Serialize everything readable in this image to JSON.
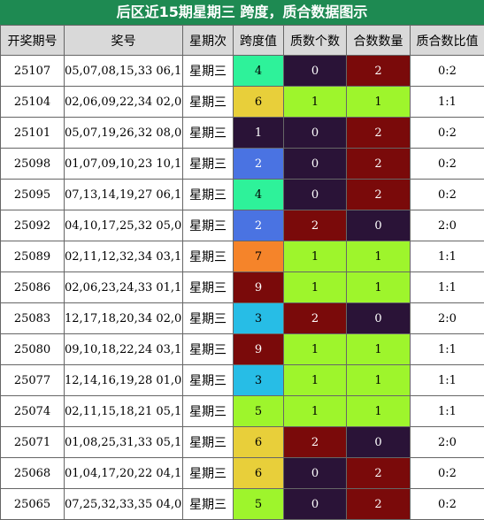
{
  "title": "后区近15期星期三 跨度，质合数据图示",
  "columns": [
    "开奖期号",
    "奖号",
    "星期次",
    "跨度值",
    "质数个数",
    "合数数量",
    "质合数比值"
  ],
  "span_colors": {
    "0": "#2a1337",
    "1": "#2a1337",
    "2": "#4a73e2",
    "3": "#27bde6",
    "4": "#2ef29a",
    "5": "#9ef52c",
    "6": "#e8cf3a",
    "7": "#f5842a",
    "8": "#7a0a0a",
    "9": "#7a0a0a"
  },
  "count_colors": {
    "0": "#2a1337",
    "1": "#9ef52c",
    "2": "#7a0a0a"
  },
  "rows": [
    {
      "issue": "25107",
      "numbers": "05,07,08,15,33 06,10",
      "weekday": "星期三",
      "span": 4,
      "primes": 0,
      "composites": 2,
      "ratio": "0:2"
    },
    {
      "issue": "25104",
      "numbers": "02,06,09,22,34 02,08",
      "weekday": "星期三",
      "span": 6,
      "primes": 1,
      "composites": 1,
      "ratio": "1:1"
    },
    {
      "issue": "25101",
      "numbers": "05,07,19,26,32 08,09",
      "weekday": "星期三",
      "span": 1,
      "primes": 0,
      "composites": 2,
      "ratio": "0:2"
    },
    {
      "issue": "25098",
      "numbers": "01,07,09,10,23 10,12",
      "weekday": "星期三",
      "span": 2,
      "primes": 0,
      "composites": 2,
      "ratio": "0:2"
    },
    {
      "issue": "25095",
      "numbers": "07,13,14,19,27 06,10",
      "weekday": "星期三",
      "span": 4,
      "primes": 0,
      "composites": 2,
      "ratio": "0:2"
    },
    {
      "issue": "25092",
      "numbers": "04,10,17,25,32 05,07",
      "weekday": "星期三",
      "span": 2,
      "primes": 2,
      "composites": 0,
      "ratio": "2:0"
    },
    {
      "issue": "25089",
      "numbers": "02,11,12,32,34 03,10",
      "weekday": "星期三",
      "span": 7,
      "primes": 1,
      "composites": 1,
      "ratio": "1:1"
    },
    {
      "issue": "25086",
      "numbers": "02,06,23,24,33 01,10",
      "weekday": "星期三",
      "span": 9,
      "primes": 1,
      "composites": 1,
      "ratio": "1:1"
    },
    {
      "issue": "25083",
      "numbers": "12,17,18,20,34 02,05",
      "weekday": "星期三",
      "span": 3,
      "primes": 2,
      "composites": 0,
      "ratio": "2:0"
    },
    {
      "issue": "25080",
      "numbers": "09,10,18,22,24 03,12",
      "weekday": "星期三",
      "span": 9,
      "primes": 1,
      "composites": 1,
      "ratio": "1:1"
    },
    {
      "issue": "25077",
      "numbers": "12,14,16,19,28 01,04",
      "weekday": "星期三",
      "span": 3,
      "primes": 1,
      "composites": 1,
      "ratio": "1:1"
    },
    {
      "issue": "25074",
      "numbers": "02,11,15,18,21 05,10",
      "weekday": "星期三",
      "span": 5,
      "primes": 1,
      "composites": 1,
      "ratio": "1:1"
    },
    {
      "issue": "25071",
      "numbers": "01,08,25,31,33 05,11",
      "weekday": "星期三",
      "span": 6,
      "primes": 2,
      "composites": 0,
      "ratio": "2:0"
    },
    {
      "issue": "25068",
      "numbers": "01,04,17,20,22 04,10",
      "weekday": "星期三",
      "span": 6,
      "primes": 0,
      "composites": 2,
      "ratio": "0:2"
    },
    {
      "issue": "25065",
      "numbers": "07,25,32,33,35 04,09",
      "weekday": "星期三",
      "span": 5,
      "primes": 0,
      "composites": 2,
      "ratio": "0:2"
    }
  ]
}
